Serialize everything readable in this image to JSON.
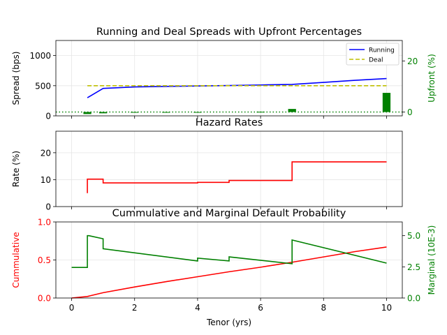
{
  "chart_data": [
    {
      "type": "line",
      "title": "Running and Deal Spreads with Upfront Percentages",
      "xlabel": "",
      "ylabel": "Spread (bps)",
      "y2label": "Upfront (%)",
      "xlim": [
        -0.5,
        10.5
      ],
      "ylim": [
        0,
        1250
      ],
      "y2lim": [
        -1.5,
        28
      ],
      "xticks": [
        0,
        2,
        4,
        6,
        8,
        10
      ],
      "yticks": [
        0,
        500,
        1000
      ],
      "y2ticks": [
        0,
        20
      ],
      "grid": true,
      "legend": {
        "placement": "top-right",
        "entries": [
          "Running",
          "Deal"
        ]
      },
      "series": [
        {
          "name": "Running",
          "color": "#0000ff",
          "style": "solid",
          "axis": "left",
          "x": [
            0.5,
            1,
            2,
            3,
            4,
            5,
            6,
            7,
            8,
            9,
            10
          ],
          "y": [
            300,
            455,
            480,
            488,
            495,
            503,
            512,
            522,
            555,
            590,
            618
          ]
        },
        {
          "name": "Deal",
          "color": "#bfbf00",
          "style": "dashed",
          "axis": "left",
          "x": [
            0.5,
            10
          ],
          "y": [
            500,
            500
          ]
        }
      ],
      "bars": {
        "axis": "right",
        "color": "#008000",
        "width": 0.25,
        "x": [
          0.5,
          1,
          2,
          3,
          4,
          5,
          6,
          7,
          8,
          9,
          10
        ],
        "values": [
          -0.8,
          -0.5,
          -0.2,
          -0.15,
          -0.1,
          0,
          0.1,
          1.2,
          0,
          0,
          7.5
        ]
      },
      "reference_line": {
        "axis": "right",
        "value": 0,
        "color": "#008000",
        "style": "dotted"
      }
    },
    {
      "type": "line",
      "title": "Hazard Rates",
      "xlabel": "",
      "ylabel": "Rate (%)",
      "xlim": [
        -0.5,
        10.5
      ],
      "ylim": [
        0,
        28
      ],
      "xticks": [
        0,
        2,
        4,
        6,
        8,
        10
      ],
      "yticks": [
        0,
        10,
        20
      ],
      "grid": true,
      "series": [
        {
          "name": "",
          "color": "#ff0000",
          "style": "steps",
          "x": [
            0.5,
            0.5,
            1,
            1,
            4,
            4,
            5,
            5,
            7,
            7,
            10
          ],
          "y": [
            5,
            10.2,
            10.2,
            8.8,
            8.8,
            9.0,
            9.0,
            9.7,
            9.7,
            16.6,
            16.6
          ]
        }
      ]
    },
    {
      "type": "line",
      "title": "Cummulative and Marginal Default Probability",
      "xlabel": "Tenor (yrs)",
      "ylabel": "Cummulative",
      "y2label": "Marginal (10E-3)",
      "xlim": [
        -0.5,
        10.5
      ],
      "ylim": [
        0,
        1.0
      ],
      "y2lim": [
        0,
        6.1
      ],
      "xticks": [
        0,
        2,
        4,
        6,
        8,
        10
      ],
      "yticks": [
        0.0,
        0.5,
        1.0
      ],
      "y2ticks": [
        0.0,
        2.5,
        5.0
      ],
      "grid": true,
      "series": [
        {
          "name": "Cummulative",
          "color": "#ff0000",
          "style": "solid",
          "axis": "left",
          "x": [
            0,
            0.5,
            1,
            2,
            3,
            4,
            5,
            6,
            7,
            8,
            9,
            10
          ],
          "y": [
            0,
            0.02,
            0.07,
            0.145,
            0.215,
            0.28,
            0.345,
            0.405,
            0.47,
            0.54,
            0.61,
            0.67
          ]
        },
        {
          "name": "Marginal",
          "color": "#008000",
          "style": "steps",
          "axis": "right",
          "x": [
            0,
            0.5,
            0.5,
            0.55,
            1,
            1,
            4,
            4,
            5,
            5,
            7,
            7,
            10
          ],
          "y": [
            2.45,
            2.45,
            5.0,
            5.0,
            4.75,
            3.95,
            2.97,
            3.2,
            2.97,
            3.3,
            2.75,
            4.65,
            2.8
          ]
        }
      ]
    }
  ]
}
